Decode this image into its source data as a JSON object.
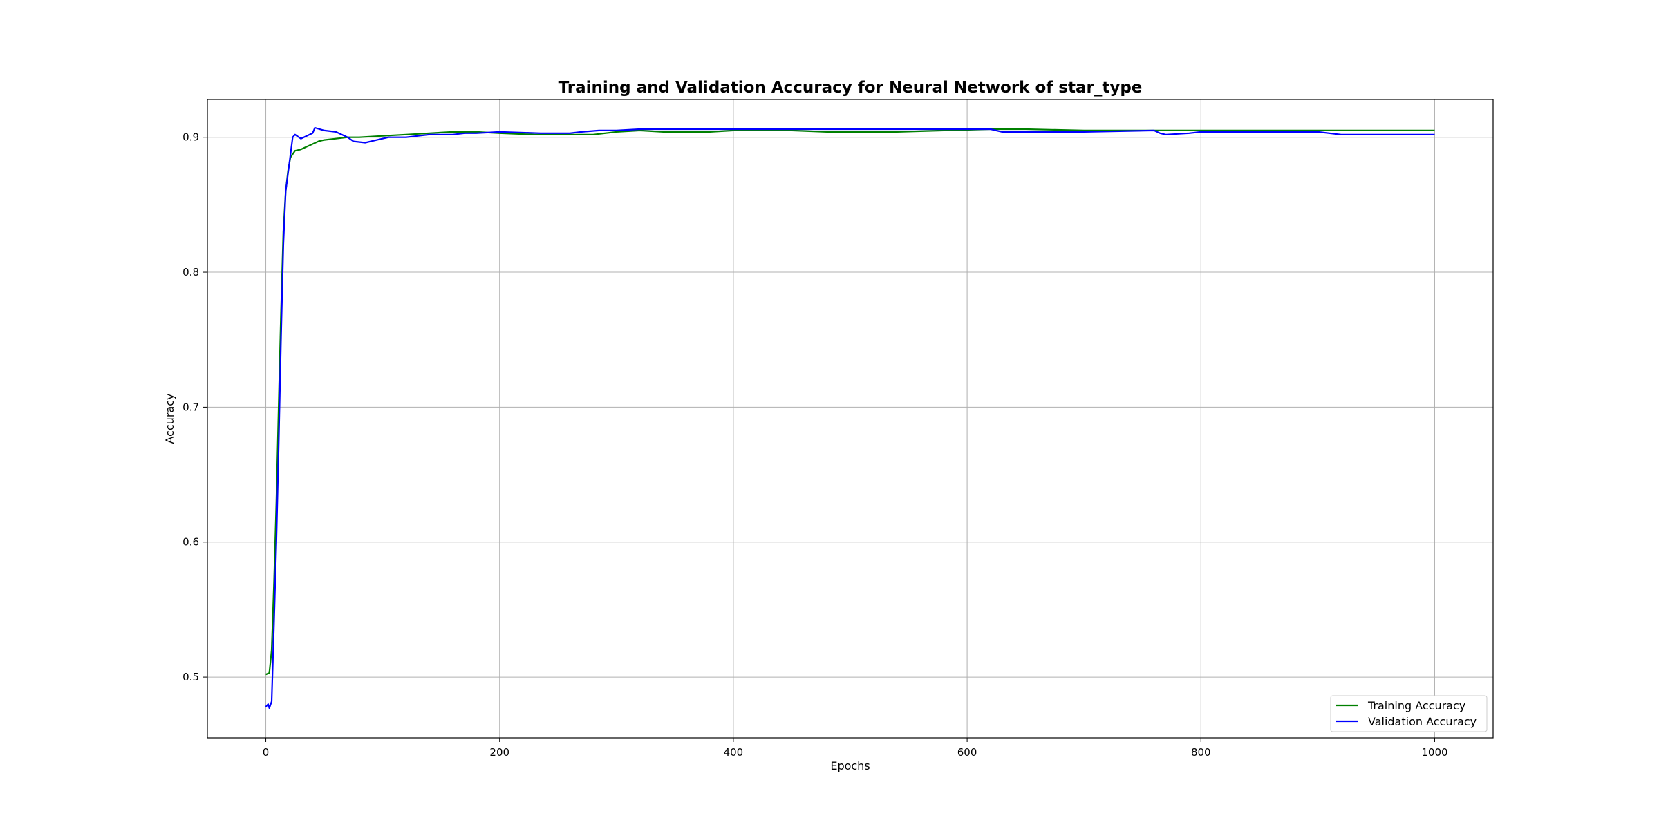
{
  "chart_data": {
    "type": "line",
    "title": "Training and Validation Accuracy for Neural Network of star_type",
    "xlabel": "Epochs",
    "ylabel": "Accuracy",
    "xlim": [
      -50,
      1050
    ],
    "ylim": [
      0.455,
      0.928
    ],
    "xticks": [
      0,
      200,
      400,
      600,
      800,
      1000
    ],
    "yticks": [
      0.5,
      0.6,
      0.7,
      0.8,
      0.9
    ],
    "xtick_labels": [
      "0",
      "200",
      "400",
      "600",
      "800",
      "1000"
    ],
    "ytick_labels": [
      "0.5",
      "0.6",
      "0.7",
      "0.8",
      "0.9"
    ],
    "grid": true,
    "legend_position": "bottom-right",
    "series": [
      {
        "name": "Training Accuracy",
        "color": "#008000",
        "points": [
          [
            0,
            0.502
          ],
          [
            3,
            0.503
          ],
          [
            5,
            0.52
          ],
          [
            7,
            0.57
          ],
          [
            9,
            0.63
          ],
          [
            11,
            0.7
          ],
          [
            13,
            0.77
          ],
          [
            15,
            0.83
          ],
          [
            17,
            0.86
          ],
          [
            19,
            0.875
          ],
          [
            21,
            0.885
          ],
          [
            25,
            0.89
          ],
          [
            30,
            0.891
          ],
          [
            35,
            0.893
          ],
          [
            40,
            0.895
          ],
          [
            45,
            0.897
          ],
          [
            50,
            0.898
          ],
          [
            60,
            0.899
          ],
          [
            70,
            0.9
          ],
          [
            80,
            0.9
          ],
          [
            100,
            0.901
          ],
          [
            120,
            0.902
          ],
          [
            140,
            0.903
          ],
          [
            160,
            0.904
          ],
          [
            180,
            0.904
          ],
          [
            200,
            0.903
          ],
          [
            230,
            0.902
          ],
          [
            260,
            0.902
          ],
          [
            280,
            0.902
          ],
          [
            300,
            0.904
          ],
          [
            320,
            0.905
          ],
          [
            340,
            0.904
          ],
          [
            380,
            0.904
          ],
          [
            400,
            0.905
          ],
          [
            450,
            0.905
          ],
          [
            480,
            0.904
          ],
          [
            500,
            0.904
          ],
          [
            540,
            0.904
          ],
          [
            580,
            0.905
          ],
          [
            620,
            0.906
          ],
          [
            650,
            0.906
          ],
          [
            700,
            0.905
          ],
          [
            760,
            0.905
          ],
          [
            800,
            0.905
          ],
          [
            850,
            0.905
          ],
          [
            900,
            0.905
          ],
          [
            1000,
            0.905
          ]
        ]
      },
      {
        "name": "Validation Accuracy",
        "color": "#0000ff",
        "points": [
          [
            0,
            0.478
          ],
          [
            2,
            0.48
          ],
          [
            3,
            0.477
          ],
          [
            5,
            0.482
          ],
          [
            7,
            0.54
          ],
          [
            9,
            0.6
          ],
          [
            11,
            0.67
          ],
          [
            13,
            0.75
          ],
          [
            15,
            0.82
          ],
          [
            17,
            0.86
          ],
          [
            20,
            0.88
          ],
          [
            23,
            0.9
          ],
          [
            25,
            0.902
          ],
          [
            30,
            0.899
          ],
          [
            35,
            0.901
          ],
          [
            40,
            0.903
          ],
          [
            42,
            0.907
          ],
          [
            50,
            0.905
          ],
          [
            60,
            0.904
          ],
          [
            70,
            0.9
          ],
          [
            75,
            0.897
          ],
          [
            85,
            0.896
          ],
          [
            95,
            0.898
          ],
          [
            105,
            0.9
          ],
          [
            120,
            0.9
          ],
          [
            140,
            0.902
          ],
          [
            160,
            0.902
          ],
          [
            170,
            0.903
          ],
          [
            180,
            0.903
          ],
          [
            200,
            0.904
          ],
          [
            235,
            0.903
          ],
          [
            260,
            0.903
          ],
          [
            270,
            0.904
          ],
          [
            285,
            0.905
          ],
          [
            300,
            0.905
          ],
          [
            320,
            0.906
          ],
          [
            400,
            0.906
          ],
          [
            500,
            0.906
          ],
          [
            600,
            0.906
          ],
          [
            620,
            0.906
          ],
          [
            630,
            0.904
          ],
          [
            700,
            0.904
          ],
          [
            760,
            0.905
          ],
          [
            765,
            0.903
          ],
          [
            770,
            0.902
          ],
          [
            790,
            0.903
          ],
          [
            800,
            0.904
          ],
          [
            820,
            0.904
          ],
          [
            900,
            0.904
          ],
          [
            920,
            0.902
          ],
          [
            1000,
            0.902
          ]
        ]
      }
    ]
  }
}
